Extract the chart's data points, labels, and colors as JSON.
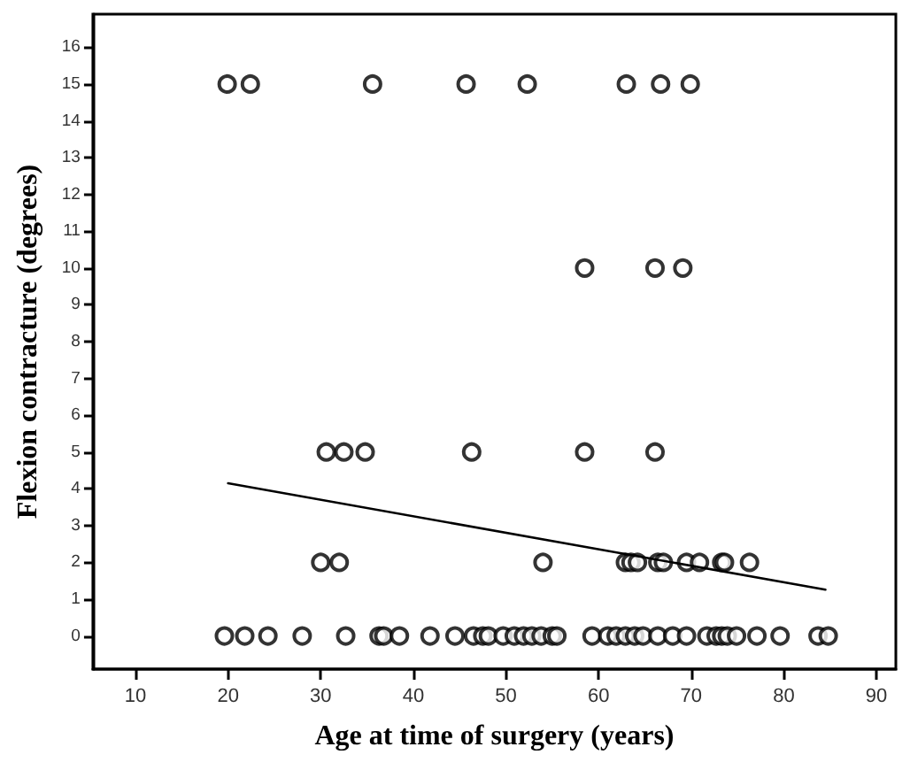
{
  "chart_data": {
    "type": "scatter",
    "xlabel": "Age at time of surgery (years)",
    "ylabel": "Flexion contracture (degrees)",
    "xlim": [
      5.4,
      92.1
    ],
    "ylim": [
      -0.9,
      16.9
    ],
    "xticks": [
      10,
      20,
      30,
      40,
      50,
      60,
      70,
      80,
      90
    ],
    "yticks": [
      0,
      1,
      2,
      3,
      4,
      5,
      6,
      7,
      8,
      9,
      10,
      11,
      12,
      13,
      14,
      15,
      16
    ],
    "grid": false,
    "marker": "circle",
    "series": [
      {
        "type": "scatter",
        "color": "#000000",
        "x": [
          19.9,
          22.4,
          35.6,
          45.7,
          52.3,
          63.0,
          66.7,
          69.9,
          58.5,
          66.1,
          69.1,
          30.6,
          32.5,
          34.8,
          46.3,
          58.5,
          66.1,
          30.0,
          32.0,
          54.0,
          62.9,
          63.5,
          64.2,
          66.4,
          67.0,
          69.5,
          70.9,
          73.3,
          73.6,
          76.3,
          19.6,
          21.8,
          24.3,
          28.0,
          32.7,
          36.3,
          36.8,
          38.5,
          41.8,
          44.5,
          46.5,
          47.5,
          48.1,
          49.7,
          50.9,
          51.9,
          52.8,
          53.8,
          55.0,
          55.5,
          59.3,
          61.0,
          61.9,
          62.9,
          63.9,
          64.8,
          66.4,
          68.0,
          69.5,
          71.7,
          72.7,
          73.3,
          73.9,
          74.9,
          77.1,
          79.6,
          83.7,
          84.8
        ],
        "values": [
          15,
          15,
          15,
          15,
          15,
          15,
          15,
          15,
          10,
          10,
          10,
          5,
          5,
          5,
          5,
          5,
          5,
          2,
          2,
          2,
          2,
          2,
          2,
          2,
          2,
          2,
          2,
          2,
          2,
          2,
          0,
          0,
          0,
          0,
          0,
          0,
          0,
          0,
          0,
          0,
          0,
          0,
          0,
          0,
          0,
          0,
          0,
          0,
          0,
          0,
          0,
          0,
          0,
          0,
          0,
          0,
          0,
          0,
          0,
          0,
          0,
          0,
          0,
          0,
          0,
          0,
          0,
          0
        ]
      },
      {
        "type": "line",
        "color": "#000000",
        "marker": "none",
        "line_style": "solid",
        "x": [
          20,
          84.5
        ],
        "values": [
          4.15,
          1.26
        ]
      }
    ]
  }
}
